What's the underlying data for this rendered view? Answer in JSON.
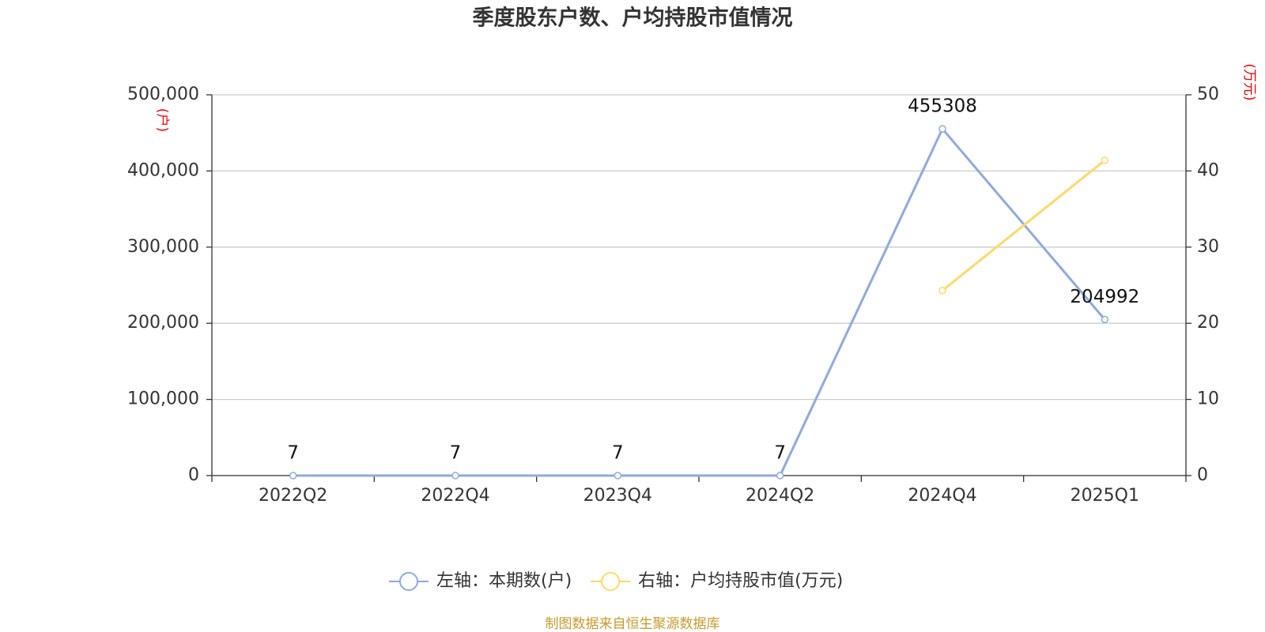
{
  "chart_data": {
    "type": "line",
    "title": "季度股东户数、户均持股市值情况",
    "y_label": "(户)",
    "y2_label": "(万元)",
    "source": "制图数据来自恒生聚源数据库",
    "categories": [
      "2022Q2",
      "2022Q4",
      "2023Q4",
      "2024Q2",
      "2024Q4",
      "2025Q1"
    ],
    "series": [
      {
        "name": "左轴：本期数(户)",
        "color": "#8faadc",
        "values": [
          7,
          7,
          7,
          7,
          455308,
          204992
        ],
        "show_labels": true
      },
      {
        "name": "右轴：户均持股市值(万元)",
        "color": "#ffd966",
        "values": [
          null,
          null,
          null,
          null,
          24.3,
          41.4
        ],
        "axis": "y2",
        "show_labels": false
      }
    ],
    "ylim": [
      0,
      500000
    ],
    "yticks": [
      0,
      {
        "value": 100000,
        "label": "100,000"
      },
      {
        "value": 200000,
        "label": "200,000"
      },
      {
        "value": 300000,
        "label": "300,000"
      },
      {
        "value": 400000,
        "label": "400,000"
      },
      {
        "value": 500000,
        "label": "500,000"
      }
    ],
    "y2lim": [
      0,
      50
    ],
    "y2ticks": [
      0,
      10,
      20,
      30,
      40,
      50
    ],
    "grid": true,
    "legend": "bottom"
  }
}
